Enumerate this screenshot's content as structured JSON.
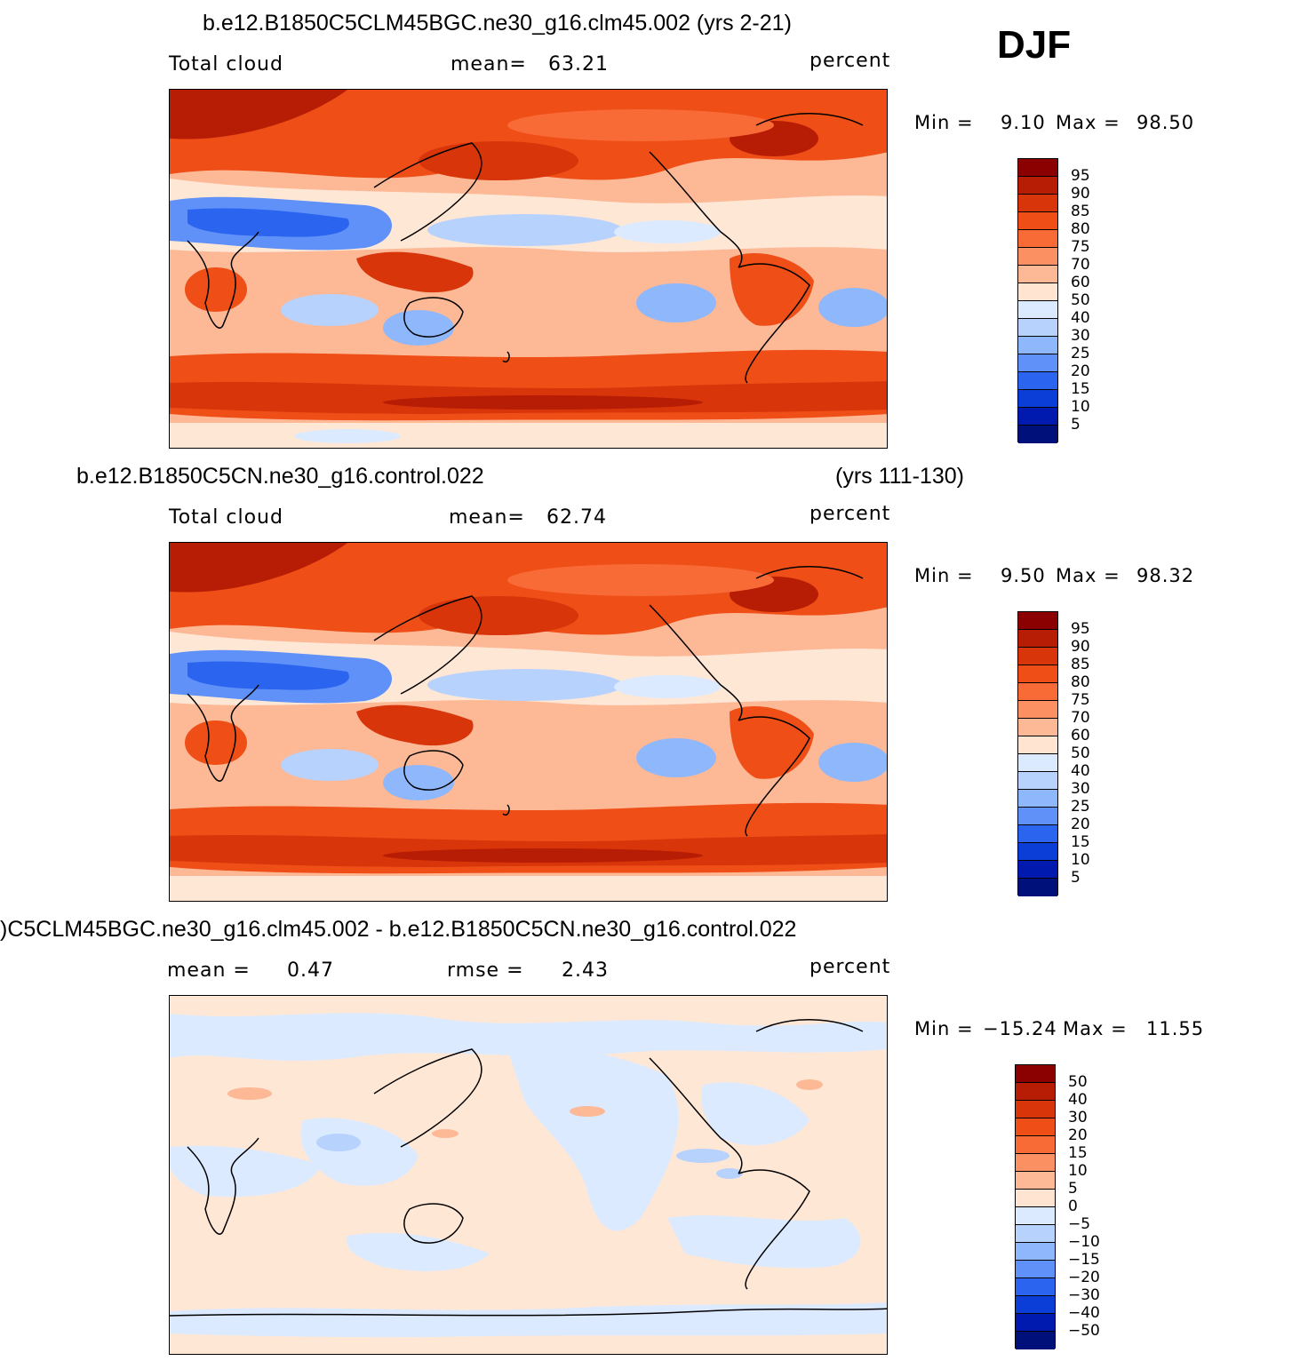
{
  "season": "DJF",
  "panels": [
    {
      "title": "b.e12.B1850C5CLM45BGC.ne30_g16.clm45.002 (yrs 2-21)",
      "title_right": "",
      "left_label": "Total cloud",
      "center_label": "mean=",
      "center_value": "63.21",
      "units": "percent",
      "min_label": "Min =",
      "min_value": "9.10",
      "max_label": "Max =",
      "max_value": "98.50",
      "colorbar_labels": [
        "95",
        "90",
        "85",
        "80",
        "75",
        "70",
        "60",
        "50",
        "40",
        "30",
        "25",
        "20",
        "15",
        "10",
        "5"
      ]
    },
    {
      "title": "b.e12.B1850C5CN.ne30_g16.control.022",
      "title_right": "(yrs 111-130)",
      "left_label": "Total cloud",
      "center_label": "mean=",
      "center_value": "62.74",
      "units": "percent",
      "min_label": "Min =",
      "min_value": "9.50",
      "max_label": "Max =",
      "max_value": "98.32",
      "colorbar_labels": [
        "95",
        "90",
        "85",
        "80",
        "75",
        "70",
        "60",
        "50",
        "40",
        "30",
        "25",
        "20",
        "15",
        "10",
        "5"
      ]
    },
    {
      "title": ")C5CLM45BGC.ne30_g16.clm45.002 - b.e12.B1850C5CN.ne30_g16.control.022",
      "title_right": "",
      "left_label": "mean =",
      "left_value": "0.47",
      "center_label": "rmse =",
      "center_value": "2.43",
      "units": "percent",
      "min_label": "Min =",
      "min_value": "−15.24",
      "max_label": "Max =",
      "max_value": "11.55",
      "colorbar_labels": [
        "50",
        "40",
        "30",
        "20",
        "15",
        "10",
        "5",
        "0",
        "−5",
        "−10",
        "−15",
        "−20",
        "−30",
        "−40",
        "−50"
      ]
    }
  ],
  "colorbar_colors": [
    "#8b0000",
    "#b71c05",
    "#d8350b",
    "#ef4e17",
    "#f86a36",
    "#fb9063",
    "#fdb896",
    "#ffe4d2",
    "#dbeaff",
    "#b7d2fd",
    "#8fb7fc",
    "#5f91f8",
    "#2b64ef",
    "#0a3ed6",
    "#0019ae",
    "#00107a"
  ],
  "colors": {
    "deep_red": "#b71c05",
    "red": "#d8350b",
    "orange_red": "#ef4e17",
    "salmon": "#f86a36",
    "light_salmon": "#fb9063",
    "peach": "#fdb896",
    "cream": "#ffe7d6",
    "pale_blue": "#dbeaff",
    "light_blue": "#b7d2fd",
    "mid_blue": "#8fb7fc",
    "blue": "#5f91f8",
    "deep_blue": "#2b64ef"
  }
}
